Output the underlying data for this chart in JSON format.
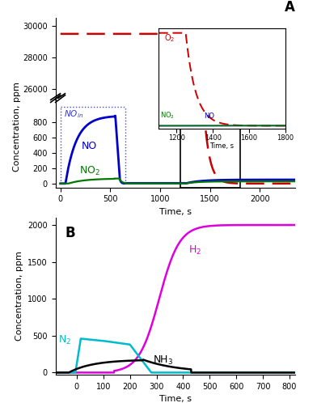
{
  "panel_A": {
    "xlabel": "Time, s",
    "ylabel": "Concentration, ppm",
    "xlim": [
      -50,
      2350
    ],
    "NO_color": "#0000cc",
    "NO2_color": "#007700",
    "O2_color": "#cc0000",
    "NOin_color": "#3333cc"
  },
  "panel_B": {
    "xlabel": "Time, s",
    "ylabel": "Concentration, ppm",
    "xlim": [
      -80,
      820
    ],
    "ylim": [
      -30,
      2100
    ],
    "yticks": [
      0,
      500,
      1000,
      1500,
      2000
    ],
    "H2_color": "#dd00dd",
    "N2_color": "#00bbcc",
    "NH3_color": "#000000"
  }
}
